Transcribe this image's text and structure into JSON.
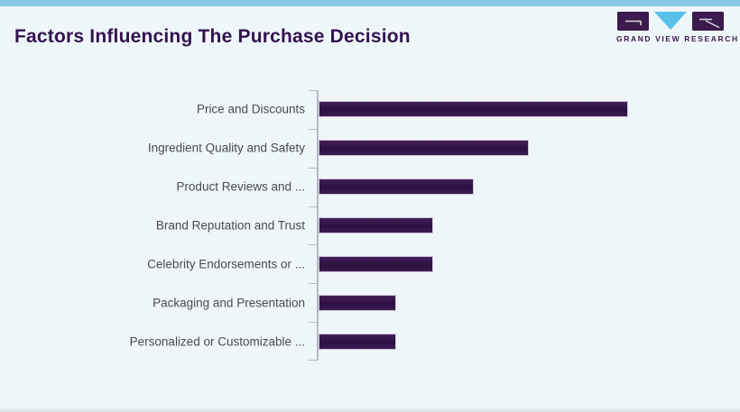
{
  "header": {
    "title": "Factors Influencing The Purchase Decision"
  },
  "logo": {
    "name": "Grand View Research",
    "wordmark": "GRAND VIEW RESEARCH",
    "purple": "#3b1b4e",
    "blue": "#58c1e8"
  },
  "colors": {
    "background": "#eff6f9",
    "top_strip": "#85cbe9",
    "title_text": "#32134f",
    "bar_fill": "#3a1a4e",
    "bar_border": "#cfc6da",
    "axis": "#b0bac0",
    "label_text": "#4a4a4a"
  },
  "chart_data": {
    "type": "bar",
    "orientation": "horizontal",
    "title": "Factors Influencing The Purchase Decision",
    "categories": [
      "Price and Discounts",
      "Ingredient Quality and Safety",
      "Product Reviews and ...",
      "Brand Reputation and Trust",
      "Celebrity Endorsements or ...",
      "Packaging and Presentation",
      "Personalized or Customizable ..."
    ],
    "values": [
      100,
      68,
      50,
      37,
      37,
      25,
      25
    ],
    "value_note": "no numeric axis shown; values estimated relative to longest bar = 100",
    "xlabel": "",
    "ylabel": "",
    "xlim": [
      0,
      100
    ],
    "grid": false,
    "legend": false,
    "bar_color": "#3a1a4e"
  }
}
